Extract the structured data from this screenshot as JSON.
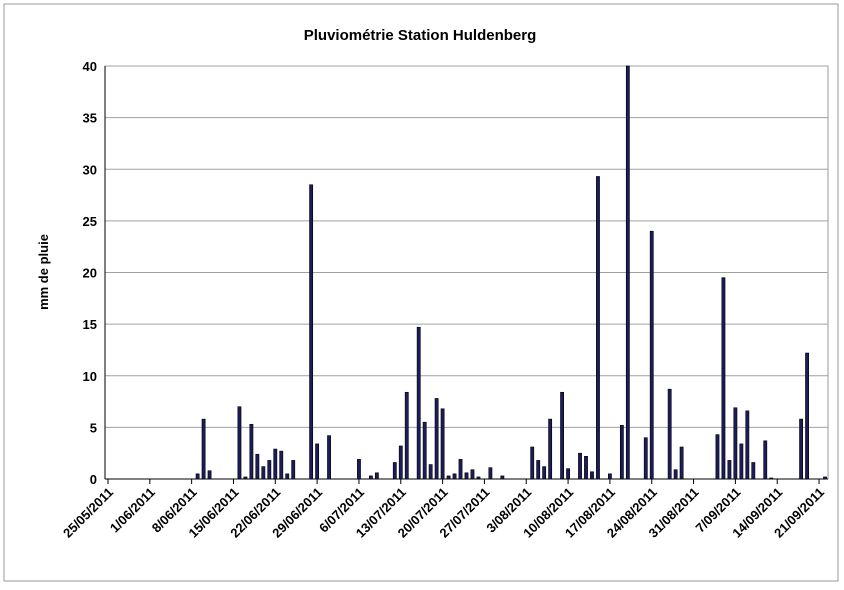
{
  "chart_data": {
    "type": "bar",
    "title": "Pluviométrie Station Huldenberg",
    "ylabel": "mm de pluie",
    "categories": [
      "25/05/2011",
      null,
      null,
      null,
      null,
      null,
      null,
      "1/06/2011",
      null,
      null,
      null,
      null,
      null,
      null,
      "8/06/2011",
      null,
      null,
      null,
      null,
      null,
      null,
      "15/06/2011",
      null,
      null,
      null,
      null,
      null,
      null,
      "22/06/2011",
      null,
      null,
      null,
      null,
      null,
      null,
      "29/06/2011",
      null,
      null,
      null,
      null,
      null,
      null,
      "6/07/2011",
      null,
      null,
      null,
      null,
      null,
      null,
      "13/07/2011",
      null,
      null,
      null,
      null,
      null,
      null,
      "20/07/2011",
      null,
      null,
      null,
      null,
      null,
      null,
      "27/07/2011",
      null,
      null,
      null,
      null,
      null,
      null,
      "3/08/2011",
      null,
      null,
      null,
      null,
      null,
      null,
      "10/08/2011",
      null,
      null,
      null,
      null,
      null,
      null,
      "17/08/2011",
      null,
      null,
      null,
      null,
      null,
      null,
      "24/08/2011",
      null,
      null,
      null,
      null,
      null,
      null,
      "31/08/2011",
      null,
      null,
      null,
      null,
      null,
      null,
      "7/09/2011",
      null,
      null,
      null,
      null,
      null,
      null,
      "14/09/2011",
      null,
      null,
      null,
      null,
      null,
      null,
      "21/09/2011",
      null
    ],
    "values": [
      0,
      0,
      0,
      0,
      0,
      0,
      0,
      0,
      0,
      0,
      0,
      0,
      0,
      0,
      0,
      0.5,
      5.8,
      0.8,
      0,
      0,
      0,
      0,
      7,
      0.2,
      5.3,
      2.4,
      1.2,
      1.8,
      2.9,
      2.7,
      0.5,
      1.8,
      0,
      0,
      28.5,
      3.4,
      0,
      4.2,
      0,
      0,
      0,
      0,
      1.9,
      0,
      0.3,
      0.6,
      0,
      0,
      1.6,
      3.2,
      8.4,
      0,
      14.7,
      5.5,
      1.4,
      7.8,
      6.8,
      0.3,
      0.5,
      1.9,
      0.6,
      0.9,
      0.2,
      0,
      1.1,
      0,
      0.3,
      0,
      0,
      0,
      0,
      3.1,
      1.8,
      1.2,
      5.8,
      0,
      8.4,
      1,
      0,
      2.5,
      2.2,
      0.7,
      29.3,
      0,
      0.5,
      0,
      5.2,
      40,
      0,
      0,
      4,
      24,
      0,
      0,
      8.7,
      0.9,
      3.1,
      0,
      0,
      0,
      0,
      0,
      4.3,
      19.5,
      1.8,
      6.9,
      3.4,
      6.6,
      1.6,
      0,
      3.7,
      0.1,
      0,
      0,
      0,
      0,
      5.8,
      12.2,
      0,
      0,
      0.2
    ],
    "color": "#1c1c5c",
    "ylim": [
      0,
      40
    ],
    "yticks": [
      0,
      5,
      10,
      15,
      20,
      25,
      30,
      35,
      40
    ],
    "grid": true
  }
}
